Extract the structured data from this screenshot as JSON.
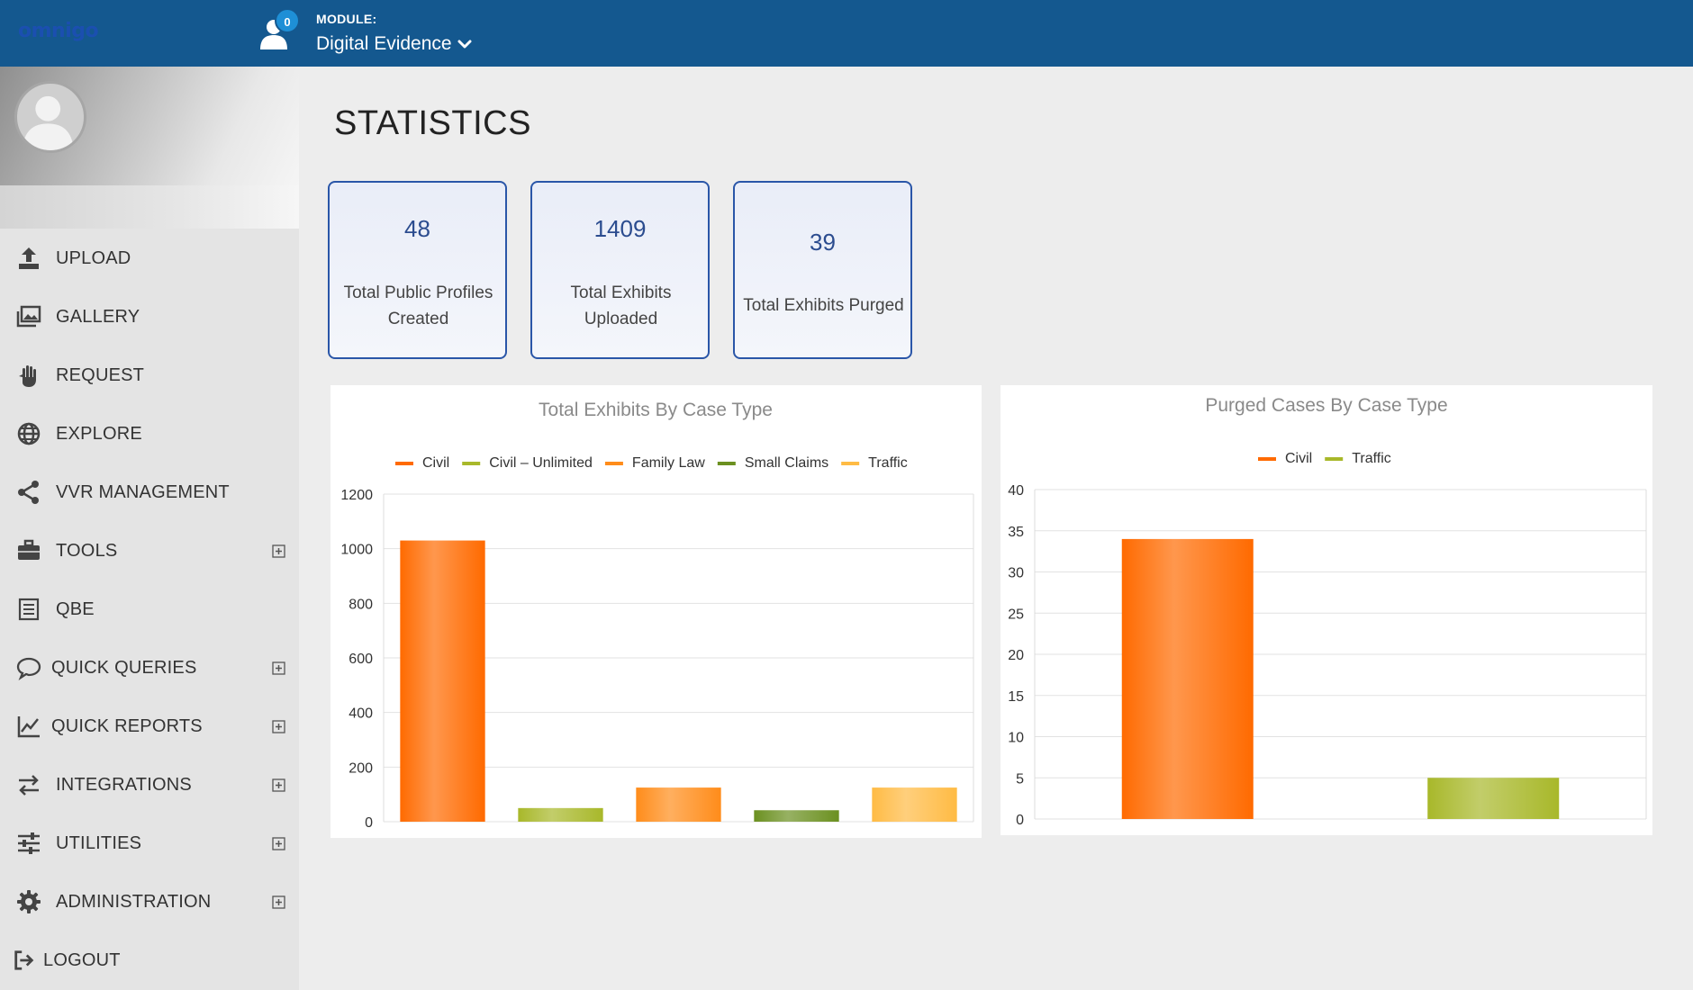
{
  "header": {
    "logo": "omnigo",
    "notification_count": "0",
    "module_caption": "MODULE:",
    "module_value": "Digital Evidence"
  },
  "sidebar": {
    "items": [
      {
        "label": "UPLOAD",
        "icon": "upload-icon",
        "expandable": false
      },
      {
        "label": "GALLERY",
        "icon": "gallery-icon",
        "expandable": false
      },
      {
        "label": "REQUEST",
        "icon": "hand-icon",
        "expandable": false
      },
      {
        "label": "EXPLORE",
        "icon": "globe-icon",
        "expandable": false
      },
      {
        "label": "VVR MANAGEMENT",
        "icon": "share-icon",
        "expandable": false
      },
      {
        "label": "TOOLS",
        "icon": "briefcase-icon",
        "expandable": true
      },
      {
        "label": "QBE",
        "icon": "list-icon",
        "expandable": false
      },
      {
        "label": "QUICK QUERIES",
        "icon": "comment-icon",
        "expandable": true
      },
      {
        "label": "QUICK REPORTS",
        "icon": "line-chart-icon",
        "expandable": true
      },
      {
        "label": "INTEGRATIONS",
        "icon": "exchange-icon",
        "expandable": true
      },
      {
        "label": "UTILITIES",
        "icon": "sliders-icon",
        "expandable": true
      },
      {
        "label": "ADMINISTRATION",
        "icon": "gear-icon",
        "expandable": true
      },
      {
        "label": "LOGOUT",
        "icon": "logout-icon",
        "expandable": false
      }
    ]
  },
  "main": {
    "title": "STATISTICS",
    "stats": [
      {
        "value": "48",
        "label_line1": "Total Public Profiles",
        "label_line2": "Created"
      },
      {
        "value": "1409",
        "label_line1": "Total Exhibits",
        "label_line2": "Uploaded"
      },
      {
        "value": "39",
        "label_line1": "Total Exhibits Purged",
        "label_line2": ""
      }
    ]
  },
  "colors": {
    "header": "#14588f",
    "civil": "#ff6a00",
    "civil_unlimited": "#a8b82a",
    "family_law": "#ff8c1a",
    "small_claims": "#6b9020",
    "traffic": "#ffbb44"
  },
  "chart_data": [
    {
      "type": "bar",
      "title": "Total Exhibits By Case Type",
      "legend_position": "top",
      "grid": true,
      "ylim": [
        0,
        1200
      ],
      "yticks": [
        0,
        200,
        400,
        600,
        800,
        1000,
        1200
      ],
      "series": [
        {
          "name": "Civil",
          "value": 1030,
          "color": "#ff6a00"
        },
        {
          "name": "Civil – Unlimited",
          "value": 50,
          "color": "#a8b82a"
        },
        {
          "name": "Family Law",
          "value": 125,
          "color": "#ff8c1a"
        },
        {
          "name": "Small Claims",
          "value": 42,
          "color": "#6b9020"
        },
        {
          "name": "Traffic",
          "value": 125,
          "color": "#ffbb44"
        }
      ]
    },
    {
      "type": "bar",
      "title": "Purged Cases By Case Type",
      "legend_position": "top",
      "grid": true,
      "ylim": [
        0,
        40
      ],
      "yticks": [
        0,
        5,
        10,
        15,
        20,
        25,
        30,
        35,
        40
      ],
      "series": [
        {
          "name": "Civil",
          "value": 34,
          "color": "#ff6a00"
        },
        {
          "name": "Traffic",
          "value": 5,
          "color": "#a8b82a"
        }
      ]
    }
  ]
}
